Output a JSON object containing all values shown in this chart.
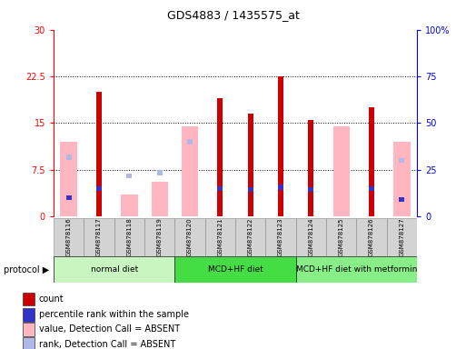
{
  "title": "GDS4883 / 1435575_at",
  "samples": [
    "GSM878116",
    "GSM878117",
    "GSM878118",
    "GSM878119",
    "GSM878120",
    "GSM878121",
    "GSM878122",
    "GSM878123",
    "GSM878124",
    "GSM878125",
    "GSM878126",
    "GSM878127"
  ],
  "count_values": [
    0,
    20.0,
    0,
    0,
    0,
    19.0,
    16.5,
    22.5,
    15.5,
    0,
    17.5,
    0
  ],
  "percentile_vals": [
    10.0,
    15.0,
    0,
    0,
    0,
    15.0,
    14.5,
    15.5,
    14.5,
    0,
    15.0,
    9.0
  ],
  "absent_value": [
    12.0,
    0,
    3.5,
    5.5,
    14.5,
    0,
    0,
    0,
    0,
    14.5,
    0,
    12.0
  ],
  "absent_rank": [
    9.5,
    0,
    6.5,
    7.0,
    12.0,
    0,
    0,
    0,
    0,
    0,
    0,
    9.0
  ],
  "protocols": [
    {
      "label": "normal diet",
      "start": 0,
      "end": 4
    },
    {
      "label": "MCD+HF diet",
      "start": 4,
      "end": 8
    },
    {
      "label": "MCD+HF diet with metformin",
      "start": 8,
      "end": 12
    }
  ],
  "proto_colors": [
    "#c8f5c0",
    "#44dd44",
    "#88ee88"
  ],
  "ylim_left": [
    0,
    30
  ],
  "ylim_right": [
    0,
    100
  ],
  "yticks_left": [
    0,
    7.5,
    15,
    22.5,
    30
  ],
  "yticks_right": [
    0,
    25,
    50,
    75,
    100
  ],
  "ytick_labels_left": [
    "0",
    "7.5",
    "15",
    "22.5",
    "30"
  ],
  "ytick_labels_right": [
    "0",
    "25",
    "50",
    "75",
    "100%"
  ],
  "color_count": "#cc0000",
  "color_percentile": "#3333cc",
  "color_absent_value": "#FFB6C1",
  "color_absent_rank": "#b0b8e8",
  "bg": "#ffffff",
  "cell_bg": "#d3d3d3"
}
